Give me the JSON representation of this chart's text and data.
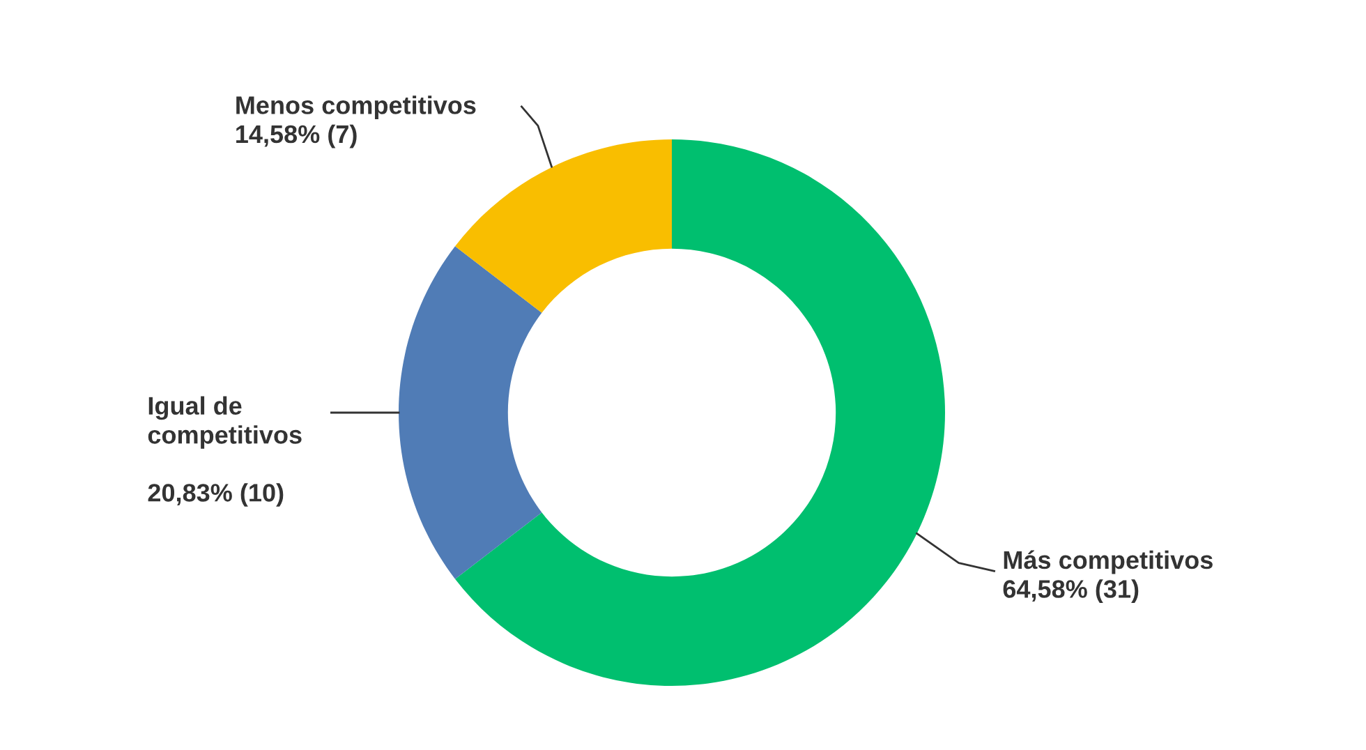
{
  "chart_data": {
    "type": "donut",
    "categories": [
      "Más competitivos",
      "Igual de competitivos",
      "Menos competitivos"
    ],
    "values": [
      31,
      10,
      7
    ],
    "value_labels": [
      "64,58% (31)",
      "20,83% (10)",
      "14,58% (7)"
    ],
    "colors": [
      "#00bf6f",
      "#507cb6",
      "#f9be00"
    ],
    "legend": false
  }
}
